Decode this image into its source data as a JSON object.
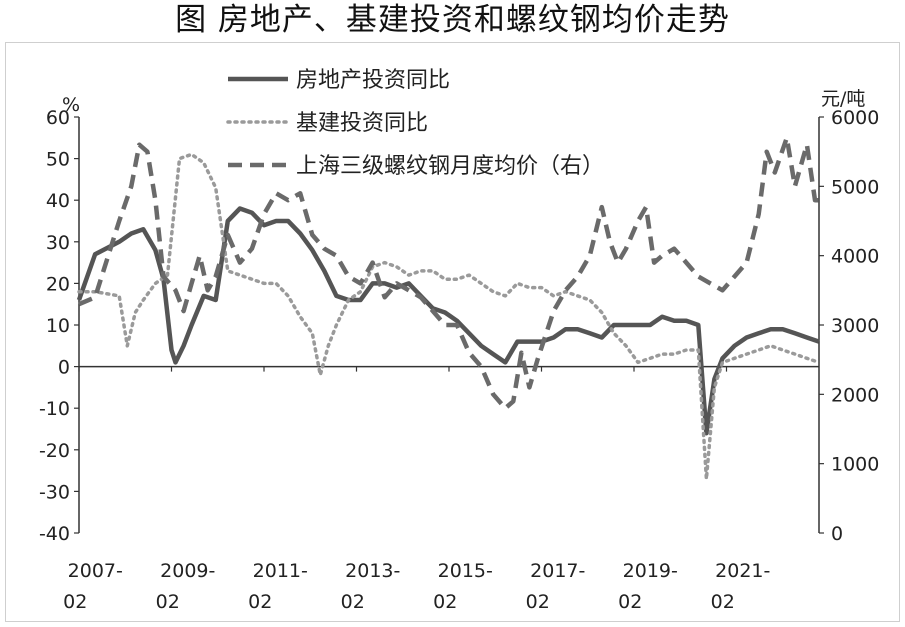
{
  "title": "图 房地产、基建投资和螺纹钢均价走势",
  "chart_data": {
    "type": "line",
    "left_axis": {
      "unit": "%",
      "ylim": [
        -40,
        60
      ],
      "ticks": [
        60,
        50,
        40,
        30,
        20,
        10,
        0,
        -10,
        -20,
        -30,
        -40
      ],
      "tick_labels": [
        "60",
        "50",
        "40",
        "30",
        "20",
        "10",
        "0",
        "-10",
        "-20",
        "-30",
        "-40"
      ]
    },
    "right_axis": {
      "unit": "元/吨",
      "ylim": [
        0,
        6000
      ],
      "ticks": [
        6000,
        5000,
        4000,
        3000,
        2000,
        1000,
        0
      ],
      "tick_labels": [
        "6000",
        "5000",
        "4000",
        "3000",
        "2000",
        "1000",
        "0"
      ]
    },
    "x_axis": {
      "range": [
        "2007-02",
        "2022-06"
      ],
      "tick_labels": [
        {
          "year": "2007-",
          "month": "02"
        },
        {
          "year": "2009-",
          "month": "02"
        },
        {
          "year": "2011-",
          "month": "02"
        },
        {
          "year": "2013-",
          "month": "02"
        },
        {
          "year": "2015-",
          "month": "02"
        },
        {
          "year": "2017-",
          "month": "02"
        },
        {
          "year": "2019-",
          "month": "02"
        },
        {
          "year": "2021-",
          "month": "02"
        }
      ]
    },
    "legend": [
      "房地产投资同比",
      "基建投资同比",
      "上海三级螺纹钢月度均价（右）"
    ],
    "legend_position": "top-center",
    "series": [
      {
        "name": "房地产投资同比",
        "axis": "left",
        "style": "solid",
        "color": "#555555",
        "points": [
          [
            "2007-02",
            16
          ],
          [
            "2007-06",
            27
          ],
          [
            "2007-12",
            30
          ],
          [
            "2008-03",
            32
          ],
          [
            "2008-06",
            33
          ],
          [
            "2008-09",
            28
          ],
          [
            "2008-11",
            21
          ],
          [
            "2009-01",
            4
          ],
          [
            "2009-02",
            1
          ],
          [
            "2009-04",
            5
          ],
          [
            "2009-06",
            10
          ],
          [
            "2009-09",
            17
          ],
          [
            "2009-12",
            16
          ],
          [
            "2010-03",
            35
          ],
          [
            "2010-06",
            38
          ],
          [
            "2010-09",
            37
          ],
          [
            "2010-12",
            34
          ],
          [
            "2011-03",
            35
          ],
          [
            "2011-06",
            35
          ],
          [
            "2011-09",
            32
          ],
          [
            "2011-12",
            28
          ],
          [
            "2012-03",
            23
          ],
          [
            "2012-06",
            17
          ],
          [
            "2012-09",
            16
          ],
          [
            "2012-12",
            16
          ],
          [
            "2013-03",
            20
          ],
          [
            "2013-06",
            20
          ],
          [
            "2013-09",
            19
          ],
          [
            "2013-12",
            20
          ],
          [
            "2014-03",
            17
          ],
          [
            "2014-06",
            14
          ],
          [
            "2014-09",
            13
          ],
          [
            "2014-12",
            11
          ],
          [
            "2015-03",
            8
          ],
          [
            "2015-06",
            5
          ],
          [
            "2015-09",
            3
          ],
          [
            "2015-12",
            1
          ],
          [
            "2016-03",
            6
          ],
          [
            "2016-06",
            6
          ],
          [
            "2016-09",
            6
          ],
          [
            "2016-12",
            7
          ],
          [
            "2017-03",
            9
          ],
          [
            "2017-06",
            9
          ],
          [
            "2017-09",
            8
          ],
          [
            "2017-12",
            7
          ],
          [
            "2018-03",
            10
          ],
          [
            "2018-06",
            10
          ],
          [
            "2018-09",
            10
          ],
          [
            "2018-12",
            10
          ],
          [
            "2019-03",
            12
          ],
          [
            "2019-06",
            11
          ],
          [
            "2019-09",
            11
          ],
          [
            "2019-12",
            10
          ],
          [
            "2020-02",
            -16
          ],
          [
            "2020-04",
            -3
          ],
          [
            "2020-06",
            2
          ],
          [
            "2020-09",
            5
          ],
          [
            "2020-12",
            7
          ],
          [
            "2021-03",
            8
          ],
          [
            "2021-06",
            9
          ],
          [
            "2021-09",
            9
          ],
          [
            "2021-12",
            8
          ],
          [
            "2022-03",
            7
          ],
          [
            "2022-06",
            6
          ]
        ]
      },
      {
        "name": "基建投资同比",
        "axis": "left",
        "style": "dotted",
        "color": "#9a9a9a",
        "points": [
          [
            "2007-02",
            18
          ],
          [
            "2007-06",
            18
          ],
          [
            "2007-12",
            17
          ],
          [
            "2008-02",
            5
          ],
          [
            "2008-04",
            13
          ],
          [
            "2008-06",
            16
          ],
          [
            "2008-09",
            20
          ],
          [
            "2008-12",
            22
          ],
          [
            "2009-03",
            50
          ],
          [
            "2009-06",
            51
          ],
          [
            "2009-09",
            49
          ],
          [
            "2009-12",
            43
          ],
          [
            "2010-03",
            23
          ],
          [
            "2010-06",
            22
          ],
          [
            "2010-09",
            21
          ],
          [
            "2010-12",
            20
          ],
          [
            "2011-03",
            20
          ],
          [
            "2011-06",
            17
          ],
          [
            "2011-09",
            12
          ],
          [
            "2011-12",
            8
          ],
          [
            "2012-02",
            -2
          ],
          [
            "2012-04",
            5
          ],
          [
            "2012-06",
            10
          ],
          [
            "2012-09",
            16
          ],
          [
            "2012-12",
            18
          ],
          [
            "2013-03",
            24
          ],
          [
            "2013-06",
            25
          ],
          [
            "2013-09",
            24
          ],
          [
            "2013-12",
            22
          ],
          [
            "2014-03",
            23
          ],
          [
            "2014-06",
            23
          ],
          [
            "2014-09",
            21
          ],
          [
            "2014-12",
            21
          ],
          [
            "2015-03",
            22
          ],
          [
            "2015-06",
            20
          ],
          [
            "2015-09",
            18
          ],
          [
            "2015-12",
            17
          ],
          [
            "2016-03",
            20
          ],
          [
            "2016-06",
            19
          ],
          [
            "2016-09",
            19
          ],
          [
            "2016-12",
            17
          ],
          [
            "2017-03",
            18
          ],
          [
            "2017-06",
            17
          ],
          [
            "2017-09",
            16
          ],
          [
            "2017-12",
            13
          ],
          [
            "2018-03",
            8
          ],
          [
            "2018-06",
            5
          ],
          [
            "2018-09",
            1
          ],
          [
            "2018-12",
            2
          ],
          [
            "2019-03",
            3
          ],
          [
            "2019-06",
            3
          ],
          [
            "2019-09",
            4
          ],
          [
            "2019-12",
            4
          ],
          [
            "2020-02",
            -27
          ],
          [
            "2020-04",
            -5
          ],
          [
            "2020-06",
            1
          ],
          [
            "2020-09",
            2
          ],
          [
            "2020-12",
            3
          ],
          [
            "2021-03",
            4
          ],
          [
            "2021-06",
            5
          ],
          [
            "2021-09",
            4
          ],
          [
            "2021-12",
            3
          ],
          [
            "2022-03",
            2
          ],
          [
            "2022-06",
            1
          ]
        ]
      },
      {
        "name": "上海三级螺纹钢月度均价（右）",
        "axis": "right",
        "style": "dashed",
        "color": "#6a6a6a",
        "points": [
          [
            "2007-02",
            3300
          ],
          [
            "2007-06",
            3400
          ],
          [
            "2007-12",
            4500
          ],
          [
            "2008-03",
            5000
          ],
          [
            "2008-05",
            5600
          ],
          [
            "2008-07",
            5500
          ],
          [
            "2008-09",
            4800
          ],
          [
            "2008-11",
            3700
          ],
          [
            "2009-02",
            3500
          ],
          [
            "2009-04",
            3200
          ],
          [
            "2009-06",
            3600
          ],
          [
            "2009-08",
            4000
          ],
          [
            "2009-10",
            3500
          ],
          [
            "2009-12",
            3700
          ],
          [
            "2010-03",
            4300
          ],
          [
            "2010-06",
            3900
          ],
          [
            "2010-09",
            4100
          ],
          [
            "2010-12",
            4600
          ],
          [
            "2011-03",
            4900
          ],
          [
            "2011-06",
            4800
          ],
          [
            "2011-09",
            4900
          ],
          [
            "2011-12",
            4300
          ],
          [
            "2012-03",
            4100
          ],
          [
            "2012-06",
            4000
          ],
          [
            "2012-09",
            3700
          ],
          [
            "2012-12",
            3600
          ],
          [
            "2013-03",
            3900
          ],
          [
            "2013-06",
            3400
          ],
          [
            "2013-09",
            3600
          ],
          [
            "2013-12",
            3500
          ],
          [
            "2014-03",
            3400
          ],
          [
            "2014-06",
            3200
          ],
          [
            "2014-09",
            3000
          ],
          [
            "2014-12",
            3000
          ],
          [
            "2015-03",
            2600
          ],
          [
            "2015-06",
            2400
          ],
          [
            "2015-09",
            2000
          ],
          [
            "2015-12",
            1800
          ],
          [
            "2016-02",
            1900
          ],
          [
            "2016-04",
            2600
          ],
          [
            "2016-06",
            2100
          ],
          [
            "2016-08",
            2500
          ],
          [
            "2016-12",
            3200
          ],
          [
            "2017-03",
            3500
          ],
          [
            "2017-06",
            3700
          ],
          [
            "2017-09",
            4000
          ],
          [
            "2017-12",
            4700
          ],
          [
            "2018-02",
            4200
          ],
          [
            "2018-04",
            3900
          ],
          [
            "2018-06",
            4100
          ],
          [
            "2018-09",
            4500
          ],
          [
            "2018-11",
            4700
          ],
          [
            "2019-01",
            3900
          ],
          [
            "2019-03",
            4000
          ],
          [
            "2019-06",
            4100
          ],
          [
            "2019-09",
            3900
          ],
          [
            "2019-12",
            3700
          ],
          [
            "2020-03",
            3600
          ],
          [
            "2020-06",
            3500
          ],
          [
            "2020-09",
            3700
          ],
          [
            "2020-12",
            3900
          ],
          [
            "2021-03",
            4600
          ],
          [
            "2021-05",
            5500
          ],
          [
            "2021-07",
            5200
          ],
          [
            "2021-10",
            5700
          ],
          [
            "2021-12",
            5000
          ],
          [
            "2022-03",
            5600
          ],
          [
            "2022-05",
            4800
          ],
          [
            "2022-06",
            4800
          ]
        ]
      }
    ]
  }
}
